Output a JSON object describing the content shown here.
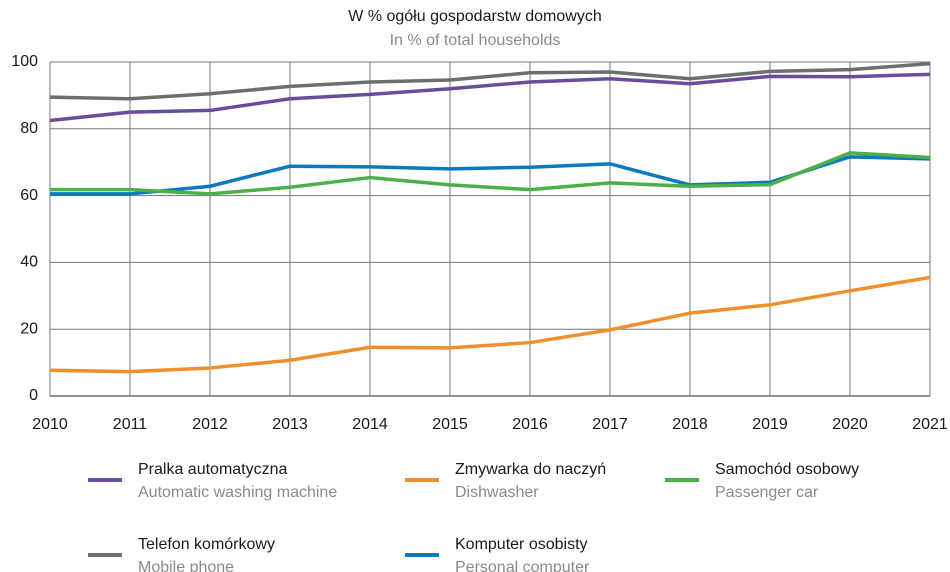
{
  "chart_data": {
    "type": "line",
    "title": "W % ogółu gospodarstw domowych",
    "subtitle": "In % of total households",
    "x": [
      2010,
      2011,
      2012,
      2013,
      2014,
      2015,
      2016,
      2017,
      2018,
      2019,
      2020,
      2021
    ],
    "xlim": [
      2010,
      2021
    ],
    "xticks": [
      2010,
      2011,
      2012,
      2013,
      2014,
      2015,
      2016,
      2017,
      2018,
      2019,
      2020,
      2021
    ],
    "ylim": [
      0,
      100
    ],
    "yticks": [
      0,
      20,
      40,
      60,
      80,
      100
    ],
    "grid": true,
    "series": [
      {
        "name": "Pralka automatyczna",
        "name_en": "Automatic washing machine",
        "color": "#6a4c9c",
        "values": [
          82.5,
          85,
          85.5,
          89,
          90.3,
          92,
          94,
          95,
          93.5,
          95.7,
          95.6,
          96.3
        ]
      },
      {
        "name": "Zmywarka do naczyń",
        "name_en": "Dishwasher",
        "color": "#f0902c",
        "values": [
          7.7,
          7.3,
          8.4,
          10.7,
          14.6,
          14.4,
          16,
          19.8,
          24.8,
          27.3,
          31.5,
          35.5
        ]
      },
      {
        "name": "Samochód osobowy",
        "name_en": "Passenger car",
        "color": "#4cb04a",
        "values": [
          61.8,
          61.8,
          60.5,
          62.5,
          65.4,
          63.2,
          61.8,
          63.8,
          62.8,
          63.3,
          72.8,
          71.4
        ]
      },
      {
        "name": "Telefon komórkowy",
        "name_en": "Mobile phone",
        "color": "#6d6e71",
        "values": [
          89.5,
          89,
          90.5,
          92.7,
          94,
          94.6,
          96.8,
          97,
          95,
          97.2,
          97.7,
          99.5
        ]
      },
      {
        "name": "Komputer osobisty",
        "name_en": "Personal computer",
        "color": "#0a7abf",
        "values": [
          60.5,
          60.5,
          62.8,
          68.8,
          68.6,
          68,
          68.5,
          69.5,
          63.2,
          64,
          71.6,
          71
        ]
      }
    ]
  }
}
